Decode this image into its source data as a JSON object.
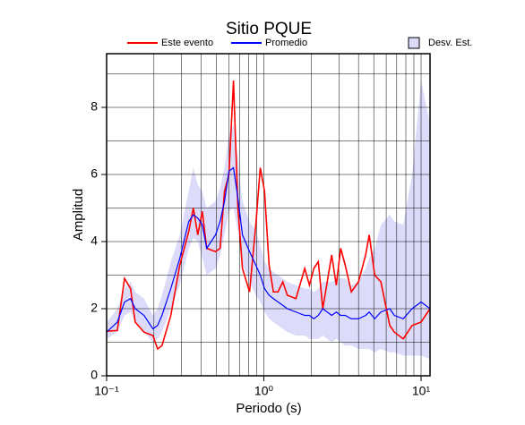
{
  "chart_data": {
    "type": "line",
    "title": "Sitio PQUE",
    "x_label": "Periodo (s)",
    "y_label": "Amplitud",
    "x_log": true,
    "grid": true,
    "xlim": [
      0.1,
      11.4
    ],
    "ylim": [
      0,
      9.6
    ],
    "xticks": [
      {
        "value": 0.1,
        "label": "10⁻¹"
      },
      {
        "value": 1,
        "label": "10⁰"
      },
      {
        "value": 10,
        "label": "10¹"
      }
    ],
    "xminor_ticks": [
      0.2,
      0.3,
      0.4,
      0.5,
      0.6,
      0.7,
      0.8,
      0.9,
      2,
      3,
      4,
      5,
      6,
      7,
      8,
      9
    ],
    "yticks": [
      0,
      2,
      4,
      6,
      8
    ],
    "yminor_ticks": [
      1,
      3,
      5,
      7,
      9
    ],
    "legend": "top",
    "x": [
      0.1,
      0.117,
      0.13,
      0.142,
      0.152,
      0.173,
      0.197,
      0.211,
      0.225,
      0.256,
      0.292,
      0.333,
      0.356,
      0.38,
      0.406,
      0.433,
      0.493,
      0.527,
      0.562,
      0.6,
      0.641,
      0.684,
      0.731,
      0.811,
      0.889,
      0.949,
      1.01,
      1.08,
      1.15,
      1.23,
      1.32,
      1.41,
      1.6,
      1.82,
      1.95,
      2.08,
      2.22,
      2.37,
      2.7,
      2.89,
      3.08,
      3.29,
      3.6,
      4.0,
      4.44,
      4.68,
      5.07,
      5.55,
      6.32,
      6.76,
      7.7,
      8.77,
      10,
      11.4
    ],
    "series": [
      {
        "name": "Este evento",
        "color": "#ff0000",
        "values": [
          1.33,
          1.35,
          2.9,
          2.6,
          1.6,
          1.3,
          1.2,
          0.8,
          0.9,
          1.8,
          3.3,
          4.3,
          5.0,
          4.2,
          4.9,
          3.8,
          3.7,
          3.8,
          5.5,
          6.0,
          8.8,
          5.0,
          3.2,
          2.5,
          4.5,
          6.2,
          5.5,
          3.3,
          2.5,
          2.5,
          2.8,
          2.4,
          2.3,
          3.2,
          2.7,
          3.2,
          3.4,
          2.0,
          3.6,
          2.7,
          3.8,
          3.3,
          2.5,
          2.8,
          3.6,
          4.2,
          3.0,
          2.8,
          1.5,
          1.3,
          1.1,
          1.5,
          1.6,
          2.0
        ]
      },
      {
        "name": "Promedio",
        "color": "#0000ff",
        "values": [
          1.3,
          1.6,
          2.2,
          2.3,
          2.0,
          1.8,
          1.4,
          1.5,
          1.8,
          2.6,
          3.5,
          4.6,
          4.8,
          4.7,
          4.5,
          3.8,
          4.2,
          4.6,
          5.2,
          6.1,
          6.2,
          5.3,
          4.2,
          3.7,
          3.3,
          3.0,
          2.6,
          2.4,
          2.3,
          2.2,
          2.1,
          2.0,
          1.9,
          1.8,
          1.8,
          1.7,
          1.8,
          2.0,
          1.8,
          1.9,
          1.8,
          1.8,
          1.7,
          1.7,
          1.8,
          1.9,
          1.7,
          1.9,
          2.0,
          1.8,
          1.7,
          2.0,
          2.2,
          2.0
        ]
      },
      {
        "name": "Desv. Est.",
        "color": "#dcdcfa",
        "low": [
          1.1,
          1.3,
          1.8,
          1.9,
          1.6,
          1.3,
          1.0,
          1.1,
          1.3,
          2.0,
          2.7,
          3.8,
          4.1,
          4.0,
          3.5,
          3.0,
          3.2,
          3.6,
          4.2,
          4.9,
          5.0,
          4.3,
          3.3,
          2.8,
          2.4,
          2.2,
          1.9,
          1.7,
          1.6,
          1.5,
          1.4,
          1.3,
          1.2,
          1.2,
          1.1,
          1.1,
          1.1,
          1.2,
          1.0,
          1.1,
          1.0,
          0.9,
          0.9,
          0.8,
          0.8,
          0.8,
          0.7,
          0.8,
          0.7,
          0.7,
          0.6,
          0.6,
          0.6,
          0.5
        ],
        "high": [
          1.6,
          2.0,
          2.6,
          2.8,
          2.5,
          2.3,
          1.8,
          2.0,
          2.4,
          3.4,
          4.2,
          5.5,
          6.2,
          5.7,
          5.5,
          5.0,
          5.2,
          5.6,
          6.2,
          7.2,
          7.5,
          6.5,
          5.2,
          4.6,
          4.3,
          3.9,
          3.4,
          3.2,
          3.1,
          3.0,
          2.9,
          2.8,
          2.7,
          2.6,
          2.6,
          2.5,
          2.6,
          2.8,
          2.8,
          2.9,
          2.9,
          2.9,
          2.7,
          2.8,
          3.2,
          3.5,
          3.8,
          4.5,
          4.8,
          4.6,
          4.5,
          6.0,
          8.8,
          7.5
        ]
      }
    ]
  }
}
